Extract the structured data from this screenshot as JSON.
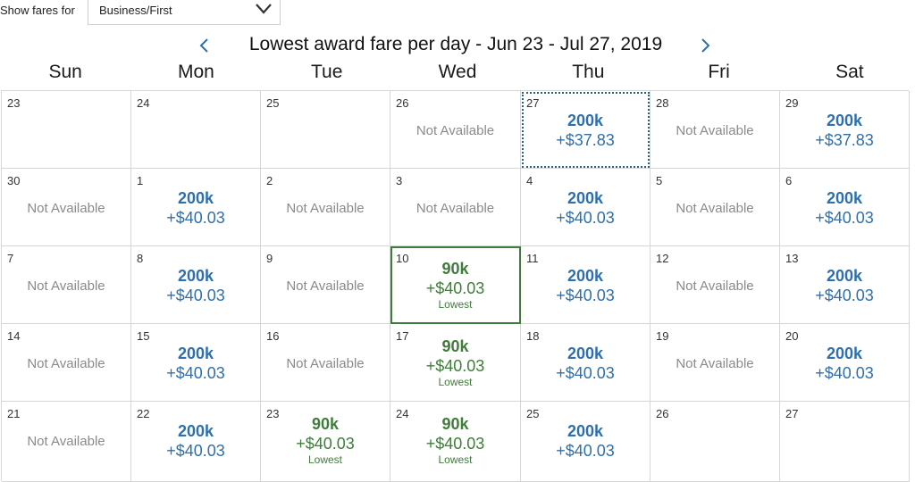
{
  "filter": {
    "label": "Show fares for",
    "selected": "Business/First"
  },
  "header": {
    "title": "Lowest award fare per day - Jun 23 - Jul 27, 2019"
  },
  "weekdays": [
    "Sun",
    "Mon",
    "Tue",
    "Wed",
    "Thu",
    "Fri",
    "Sat"
  ],
  "text": {
    "not_available": "Not Available",
    "lowest": "Lowest"
  },
  "colors": {
    "fare_blue": "#2e6fad",
    "fare_green": "#3f7d3a",
    "not_available_gray": "#8a8a8a"
  },
  "calendar": {
    "weeks": [
      [
        {
          "day": "23",
          "status": "empty"
        },
        {
          "day": "24",
          "status": "empty"
        },
        {
          "day": "25",
          "status": "empty"
        },
        {
          "day": "26",
          "status": "na"
        },
        {
          "day": "27",
          "status": "fare",
          "miles": "200k",
          "tax": "+$37.83",
          "selected": "dotted"
        },
        {
          "day": "28",
          "status": "na"
        },
        {
          "day": "29",
          "status": "fare",
          "miles": "200k",
          "tax": "+$37.83"
        }
      ],
      [
        {
          "day": "30",
          "status": "na"
        },
        {
          "day": "1",
          "status": "fare",
          "miles": "200k",
          "tax": "+$40.03"
        },
        {
          "day": "2",
          "status": "na"
        },
        {
          "day": "3",
          "status": "na"
        },
        {
          "day": "4",
          "status": "fare",
          "miles": "200k",
          "tax": "+$40.03"
        },
        {
          "day": "5",
          "status": "na"
        },
        {
          "day": "6",
          "status": "fare",
          "miles": "200k",
          "tax": "+$40.03"
        }
      ],
      [
        {
          "day": "7",
          "status": "na"
        },
        {
          "day": "8",
          "status": "fare",
          "miles": "200k",
          "tax": "+$40.03"
        },
        {
          "day": "9",
          "status": "na"
        },
        {
          "day": "10",
          "status": "lowest",
          "miles": "90k",
          "tax": "+$40.03",
          "selected": "green"
        },
        {
          "day": "11",
          "status": "fare",
          "miles": "200k",
          "tax": "+$40.03"
        },
        {
          "day": "12",
          "status": "na"
        },
        {
          "day": "13",
          "status": "fare",
          "miles": "200k",
          "tax": "+$40.03"
        }
      ],
      [
        {
          "day": "14",
          "status": "na"
        },
        {
          "day": "15",
          "status": "fare",
          "miles": "200k",
          "tax": "+$40.03"
        },
        {
          "day": "16",
          "status": "na"
        },
        {
          "day": "17",
          "status": "lowest",
          "miles": "90k",
          "tax": "+$40.03"
        },
        {
          "day": "18",
          "status": "fare",
          "miles": "200k",
          "tax": "+$40.03"
        },
        {
          "day": "19",
          "status": "na"
        },
        {
          "day": "20",
          "status": "fare",
          "miles": "200k",
          "tax": "+$40.03"
        }
      ],
      [
        {
          "day": "21",
          "status": "na"
        },
        {
          "day": "22",
          "status": "fare",
          "miles": "200k",
          "tax": "+$40.03"
        },
        {
          "day": "23",
          "status": "lowest",
          "miles": "90k",
          "tax": "+$40.03"
        },
        {
          "day": "24",
          "status": "lowest",
          "miles": "90k",
          "tax": "+$40.03"
        },
        {
          "day": "25",
          "status": "fare",
          "miles": "200k",
          "tax": "+$40.03"
        },
        {
          "day": "26",
          "status": "empty"
        },
        {
          "day": "27",
          "status": "empty"
        }
      ]
    ]
  }
}
